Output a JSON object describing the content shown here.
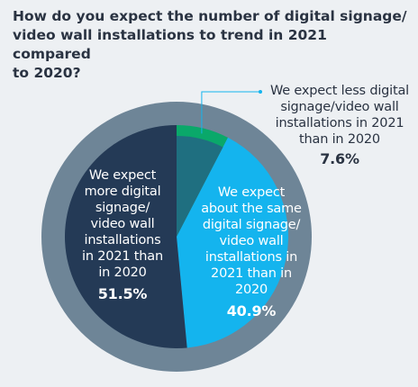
{
  "chart_data": {
    "type": "pie",
    "title_lines": [
      "How do you expect the number of digital signage/",
      "video wall installations to trend in 2021 compared",
      "to 2020?"
    ],
    "slices": [
      {
        "label_lines": [
          "We expect less digital",
          "signage/video wall",
          "installations in 2021",
          "than in 2020"
        ],
        "value": 7.6,
        "display": "7.6%",
        "color": "#0aa86a"
      },
      {
        "label_lines": [
          "We expect",
          "about the same",
          "digital signage/",
          "video wall",
          "installations in",
          "2021 than in",
          "2020"
        ],
        "value": 40.9,
        "display": "40.9%",
        "color": "#14b4ee"
      },
      {
        "label_lines": [
          "We expect",
          "more digital",
          "signage/",
          "video wall",
          "installations",
          "in 2021 than",
          "in 2020"
        ],
        "value": 51.5,
        "display": "51.5%",
        "color": "#243a56"
      }
    ],
    "colors": {
      "outer_ring": "#6e8597",
      "inner_inset": "#1f6f80",
      "leader_line": "#14b4ee",
      "text_dark": "#2a3342"
    }
  }
}
